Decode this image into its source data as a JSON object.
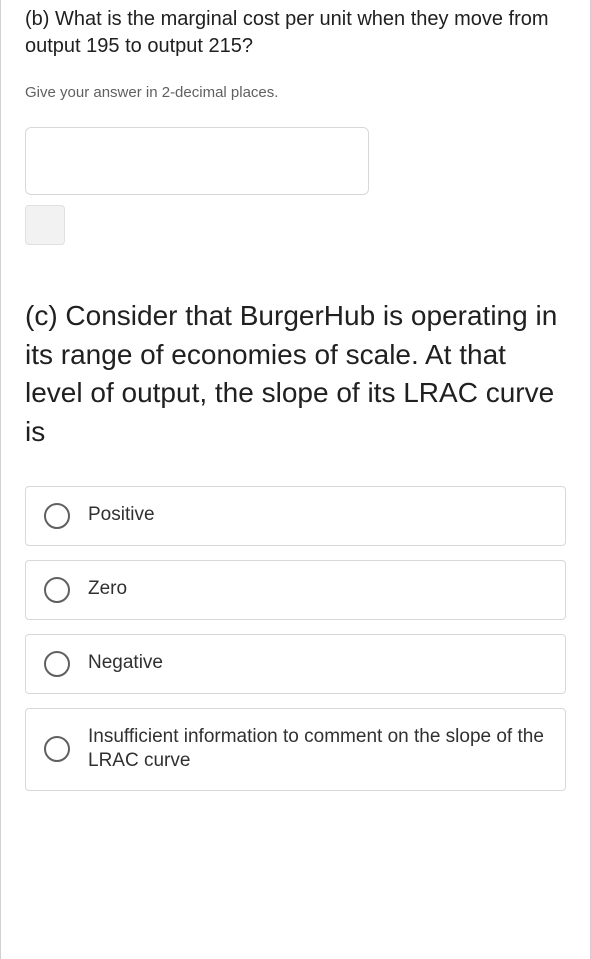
{
  "question_b": {
    "text": "(b) What is the marginal cost per unit when they move from output 195 to output 215?",
    "hint": "Give your answer in 2-decimal places.",
    "input_value": ""
  },
  "question_c": {
    "text": "(c) Consider that BurgerHub is operating in its range of economies of scale. At that level of output, the slope of its LRAC curve is",
    "options": [
      "Positive",
      "Zero",
      "Negative",
      "Insufficient information to comment on the slope of the LRAC curve"
    ]
  },
  "colors": {
    "text_primary": "#202020",
    "text_secondary": "#606060",
    "border": "#d8d8d8",
    "background": "#ffffff",
    "small_box_bg": "#f2f2f2",
    "radio_border": "#606060"
  },
  "fonts": {
    "question_b_size": 20,
    "hint_size": 15,
    "question_c_size": 28,
    "option_size": 19,
    "family": "Arial"
  }
}
